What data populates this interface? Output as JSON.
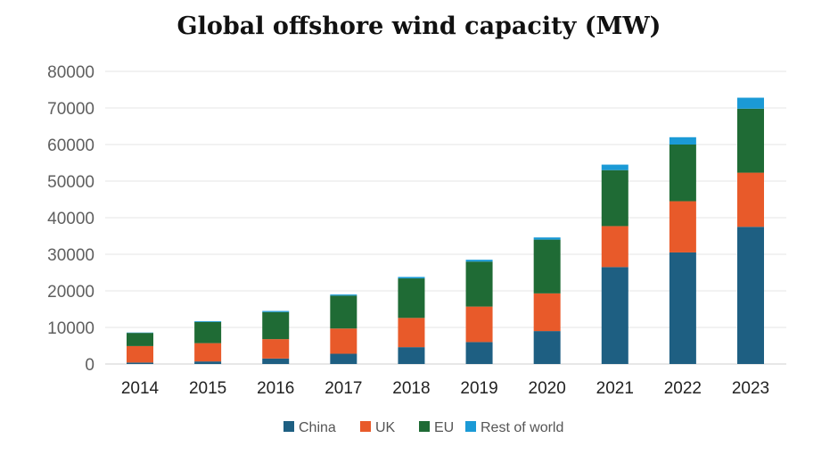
{
  "chart_data": {
    "type": "bar",
    "stacked": true,
    "title": "Global offshore wind capacity (MW)",
    "xlabel": "",
    "ylabel": "",
    "categories": [
      "2014",
      "2015",
      "2016",
      "2017",
      "2018",
      "2019",
      "2020",
      "2021",
      "2022",
      "2023"
    ],
    "ylim": [
      0,
      80000
    ],
    "yticks": [
      0,
      10000,
      20000,
      30000,
      40000,
      50000,
      60000,
      70000,
      80000
    ],
    "grid": true,
    "legend_position": "bottom",
    "series": [
      {
        "name": "China",
        "color": "#1e5f82",
        "values": [
          400,
          700,
          1500,
          2800,
          4600,
          6000,
          9000,
          26500,
          30500,
          37500
        ]
      },
      {
        "name": "UK",
        "color": "#e85a2a",
        "values": [
          4500,
          5000,
          5300,
          6900,
          8000,
          9700,
          10300,
          11200,
          14000,
          14800
        ]
      },
      {
        "name": "EU",
        "color": "#1f6b35",
        "values": [
          3600,
          5800,
          7400,
          9000,
          10800,
          12300,
          14700,
          15300,
          15500,
          17500
        ]
      },
      {
        "name": "Rest of world",
        "color": "#1b9ad6",
        "values": [
          100,
          200,
          300,
          300,
          400,
          500,
          600,
          1500,
          2000,
          3000
        ]
      }
    ]
  }
}
